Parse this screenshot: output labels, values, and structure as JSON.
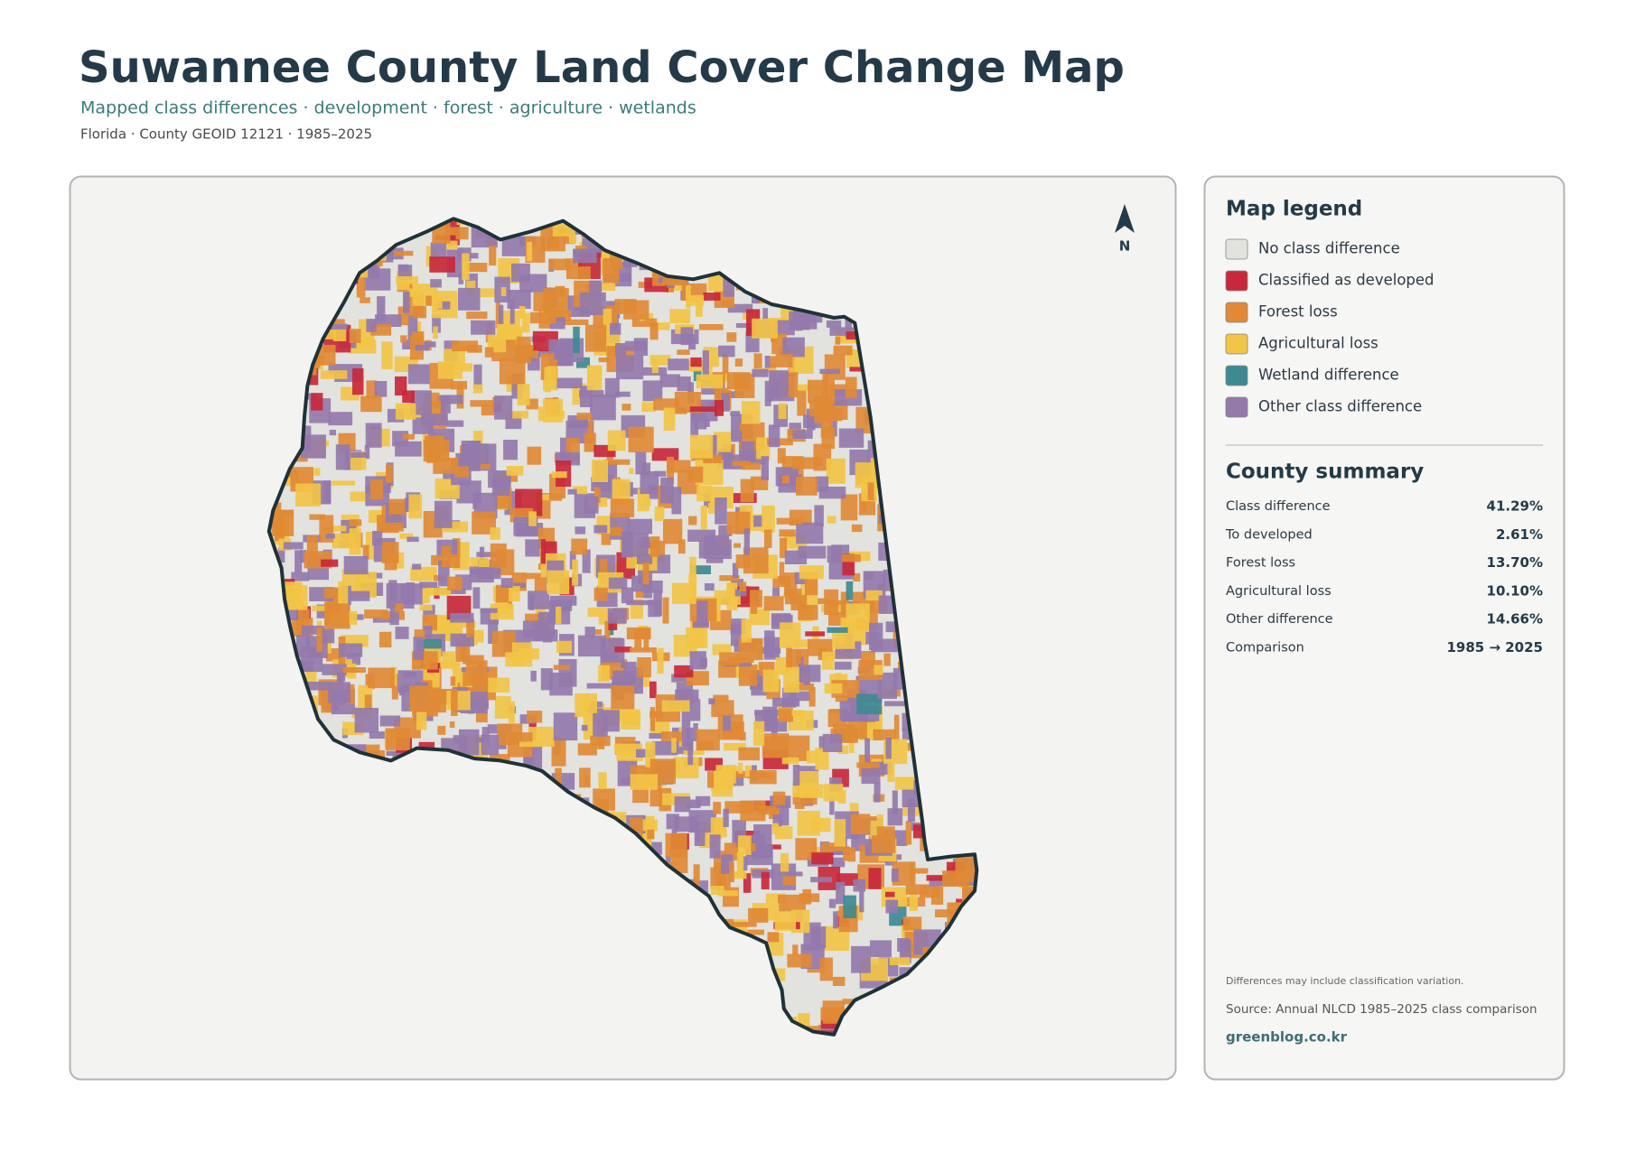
{
  "header": {
    "title": "Suwannee County Land Cover Change Map",
    "subtitle": "Mapped class differences · development · forest · agriculture · wetlands",
    "meta": "Florida · County GEOID 12121 · 1985–2025"
  },
  "map": {
    "north_label": "N"
  },
  "legend": {
    "title": "Map legend",
    "items": [
      {
        "label": "No class difference",
        "color": "#e2e2de"
      },
      {
        "label": "Classified as developed",
        "color": "#c8283a"
      },
      {
        "label": "Forest loss",
        "color": "#e08a35"
      },
      {
        "label": "Agricultural loss",
        "color": "#f2c447"
      },
      {
        "label": "Wetland difference",
        "color": "#3f8a92"
      },
      {
        "label": "Other class difference",
        "color": "#9479ab"
      }
    ]
  },
  "summary": {
    "title": "County summary",
    "rows": [
      {
        "label": "Class difference",
        "value": "41.29%"
      },
      {
        "label": "To developed",
        "value": "2.61%"
      },
      {
        "label": "Forest loss",
        "value": "13.70%"
      },
      {
        "label": "Agricultural loss",
        "value": "10.10%"
      },
      {
        "label": "Other difference",
        "value": "14.66%"
      },
      {
        "label": "Comparison",
        "value": "1985 → 2025"
      }
    ]
  },
  "footer": {
    "note": "Differences may include classification variation.",
    "source": "Source: Annual NLCD 1985–2025 class comparison",
    "site": "greenblog.co.kr"
  }
}
